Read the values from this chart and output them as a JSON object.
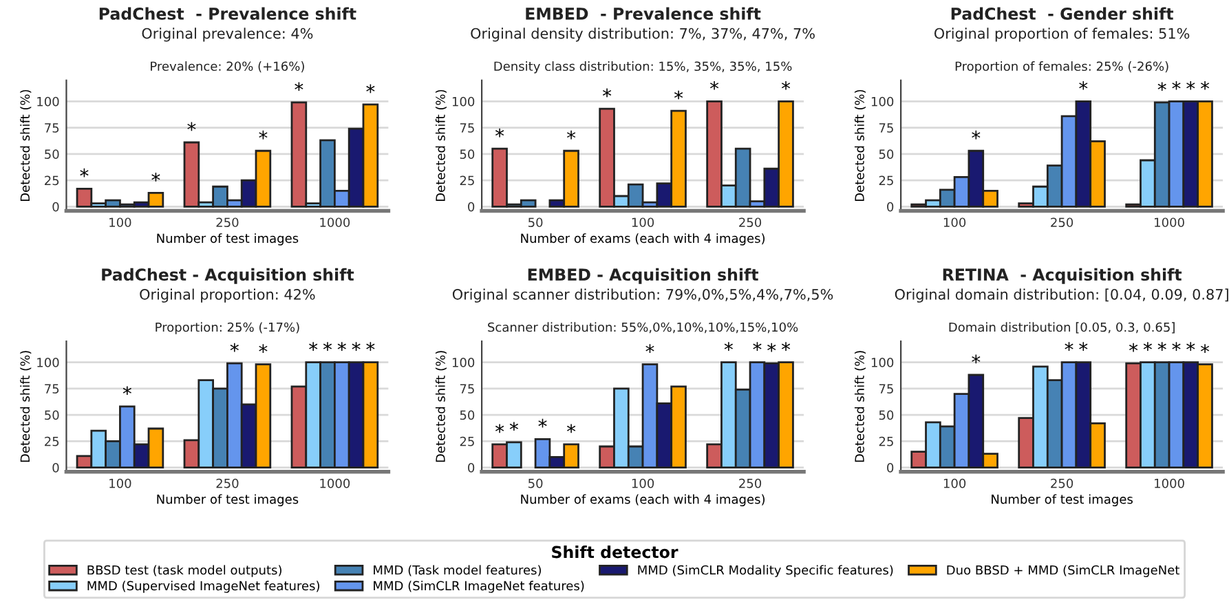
{
  "chart_data": [
    {
      "type": "bar",
      "title": "PadChest  - Prevalence shift",
      "subtitle": "Original prevalence: 4%",
      "annotations": [
        "Prevalence: 20% (+16%)"
      ],
      "xlabel": "Number of test images",
      "ylabel": "Detected shift (%)",
      "categories": [
        "100",
        "250",
        "1000"
      ],
      "ylim": [
        -4,
        120
      ],
      "yticks": [
        0,
        25,
        50,
        75,
        100
      ],
      "grid": "y",
      "legend": "bottom",
      "legend_title": "Shift detector",
      "series": [
        {
          "name": "BBSD test (task model outputs)",
          "color": "#cd5c5c",
          "values": [
            17,
            61,
            99
          ],
          "value_labels": [
            "*",
            "*",
            "*"
          ]
        },
        {
          "name": "MMD (Supervised ImageNet features)",
          "color": "#87cefa",
          "values": [
            3,
            4,
            3
          ]
        },
        {
          "name": "MMD (Task model features)",
          "color": "#4682b4",
          "values": [
            6,
            19,
            63
          ]
        },
        {
          "name": "MMD (SimCLR ImageNet features)",
          "color": "#6495ed",
          "values": [
            2,
            6,
            15
          ]
        },
        {
          "name": "MMD (SimCLR Modality Specific features)",
          "color": "#191970",
          "values": [
            4,
            25,
            74
          ]
        },
        {
          "name": "Duo BBSD + MMD (SimCLR ImageNet",
          "color": "#ffa500",
          "values": [
            13,
            53,
            97
          ],
          "value_labels": [
            "*",
            "*",
            "*"
          ]
        }
      ]
    },
    {
      "type": "bar",
      "title": "EMBED  - Prevalence shift",
      "subtitle": "Original density distribution: 7%, 37%, 47%, 7%",
      "annotations": [
        "Density class distribution: 15%, 35%, 35%, 15%"
      ],
      "xlabel": "Number of exams (each with 4 images)",
      "ylabel": "Detected shift (%)",
      "categories": [
        "50",
        "100",
        "250"
      ],
      "ylim": [
        -4,
        120
      ],
      "yticks": [
        0,
        25,
        50,
        75,
        100
      ],
      "grid": "y",
      "series": [
        {
          "color": "#cd5c5c",
          "values": [
            55,
            93,
            100
          ],
          "value_labels": [
            "*",
            "*",
            "*"
          ]
        },
        {
          "color": "#87cefa",
          "values": [
            2,
            10,
            20
          ]
        },
        {
          "color": "#4682b4",
          "values": [
            6,
            21,
            55
          ]
        },
        {
          "color": "#6495ed",
          "values": [
            0,
            4,
            5
          ]
        },
        {
          "color": "#191970",
          "values": [
            6,
            22,
            36
          ]
        },
        {
          "color": "#ffa500",
          "values": [
            53,
            91,
            100
          ],
          "value_labels": [
            "*",
            "*",
            "*"
          ]
        }
      ]
    },
    {
      "type": "bar",
      "title": "PadChest  - Gender shift",
      "subtitle": "Original proportion of females: 51%",
      "annotations": [
        "Proportion of females: 25% (-26%)"
      ],
      "xlabel": null,
      "ylabel": "Detected shift (%)",
      "categories": [
        "100",
        "250",
        "1000"
      ],
      "ylim": [
        -4,
        120
      ],
      "yticks": [
        0,
        25,
        50,
        75,
        100
      ],
      "grid": "y",
      "series": [
        {
          "color": "#cd5c5c",
          "values": [
            2,
            3,
            2
          ]
        },
        {
          "color": "#87cefa",
          "values": [
            6,
            19,
            44
          ]
        },
        {
          "color": "#4682b4",
          "values": [
            16,
            39,
            99
          ],
          "value_labels": [
            null,
            null,
            "*"
          ]
        },
        {
          "color": "#6495ed",
          "values": [
            28,
            86,
            100
          ],
          "value_labels": [
            null,
            null,
            "*"
          ]
        },
        {
          "color": "#191970",
          "values": [
            53,
            100,
            100
          ],
          "value_labels": [
            "*",
            "*",
            "*"
          ]
        },
        {
          "color": "#ffa500",
          "values": [
            15,
            62,
            100
          ],
          "value_labels": [
            null,
            null,
            "*"
          ]
        }
      ]
    },
    {
      "type": "bar",
      "title": "PadChest - Acquisition shift",
      "subtitle": "Original proportion: 42%",
      "annotations": [
        "Proportion: 25% (-17%)"
      ],
      "xlabel": "Number of test images",
      "ylabel": "Detected shift (%)",
      "categories": [
        "100",
        "250",
        "1000"
      ],
      "ylim": [
        -4,
        120
      ],
      "yticks": [
        0,
        25,
        50,
        75,
        100
      ],
      "grid": "y",
      "series": [
        {
          "color": "#cd5c5c",
          "values": [
            11,
            26,
            77
          ]
        },
        {
          "color": "#87cefa",
          "values": [
            35,
            83,
            100
          ],
          "value_labels": [
            null,
            null,
            "*"
          ]
        },
        {
          "color": "#4682b4",
          "values": [
            25,
            75,
            100
          ],
          "value_labels": [
            null,
            null,
            "*"
          ]
        },
        {
          "color": "#6495ed",
          "values": [
            58,
            99,
            100
          ],
          "value_labels": [
            "*",
            "*",
            "*"
          ]
        },
        {
          "color": "#191970",
          "values": [
            22,
            60,
            100
          ],
          "value_labels": [
            null,
            null,
            "*"
          ]
        },
        {
          "color": "#ffa500",
          "values": [
            37,
            98,
            100
          ],
          "value_labels": [
            null,
            "*",
            "*"
          ]
        }
      ]
    },
    {
      "type": "bar",
      "title": "EMBED - Acquisition shift",
      "subtitle": "Original scanner distribution: 79%,0%,5%,4%,7%,5%",
      "annotations": [
        "Scanner distribution: 55%,0%,10%,10%,15%,10%"
      ],
      "xlabel": "Number of exams (each with 4 images)",
      "ylabel": "Detected shift (%)",
      "categories": [
        "50",
        "100",
        "250"
      ],
      "ylim": [
        -4,
        120
      ],
      "yticks": [
        0,
        25,
        50,
        75,
        100
      ],
      "grid": "y",
      "series": [
        {
          "color": "#cd5c5c",
          "values": [
            22,
            20,
            22
          ],
          "value_labels": [
            "*",
            null,
            null
          ]
        },
        {
          "color": "#87cefa",
          "values": [
            24,
            75,
            100
          ],
          "value_labels": [
            "*",
            null,
            "*"
          ]
        },
        {
          "color": "#4682b4",
          "values": [
            0,
            20,
            74
          ]
        },
        {
          "color": "#6495ed",
          "values": [
            27,
            98,
            100
          ],
          "value_labels": [
            "*",
            "*",
            "*"
          ]
        },
        {
          "color": "#191970",
          "values": [
            10,
            61,
            99
          ],
          "value_labels": [
            null,
            null,
            "*"
          ]
        },
        {
          "color": "#ffa500",
          "values": [
            22,
            77,
            100
          ],
          "value_labels": [
            "*",
            null,
            "*"
          ]
        }
      ]
    },
    {
      "type": "bar",
      "title": "RETINA  - Acquisition shift",
      "subtitle": "Original domain distribution: [0.04, 0.09, 0.87]",
      "annotations": [
        "Domain distribution [0.05, 0.3, 0.65]"
      ],
      "xlabel": "Number of test images",
      "ylabel": "Detected shift (%)",
      "categories": [
        "100",
        "250",
        "1000"
      ],
      "ylim": [
        -4,
        120
      ],
      "yticks": [
        0,
        25,
        50,
        75,
        100
      ],
      "grid": "y",
      "series": [
        {
          "color": "#cd5c5c",
          "values": [
            15,
            47,
            99
          ],
          "value_labels": [
            null,
            null,
            "*"
          ]
        },
        {
          "color": "#87cefa",
          "values": [
            43,
            96,
            100
          ],
          "value_labels": [
            null,
            null,
            "*"
          ]
        },
        {
          "color": "#4682b4",
          "values": [
            39,
            83,
            100
          ],
          "value_labels": [
            null,
            null,
            "*"
          ]
        },
        {
          "color": "#6495ed",
          "values": [
            70,
            100,
            100
          ],
          "value_labels": [
            null,
            "*",
            "*"
          ]
        },
        {
          "color": "#191970",
          "values": [
            88,
            100,
            100
          ],
          "value_labels": [
            "*",
            "*",
            "*"
          ]
        },
        {
          "color": "#ffa500",
          "values": [
            13,
            42,
            98
          ],
          "value_labels": [
            null,
            null,
            "*"
          ]
        }
      ]
    }
  ]
}
